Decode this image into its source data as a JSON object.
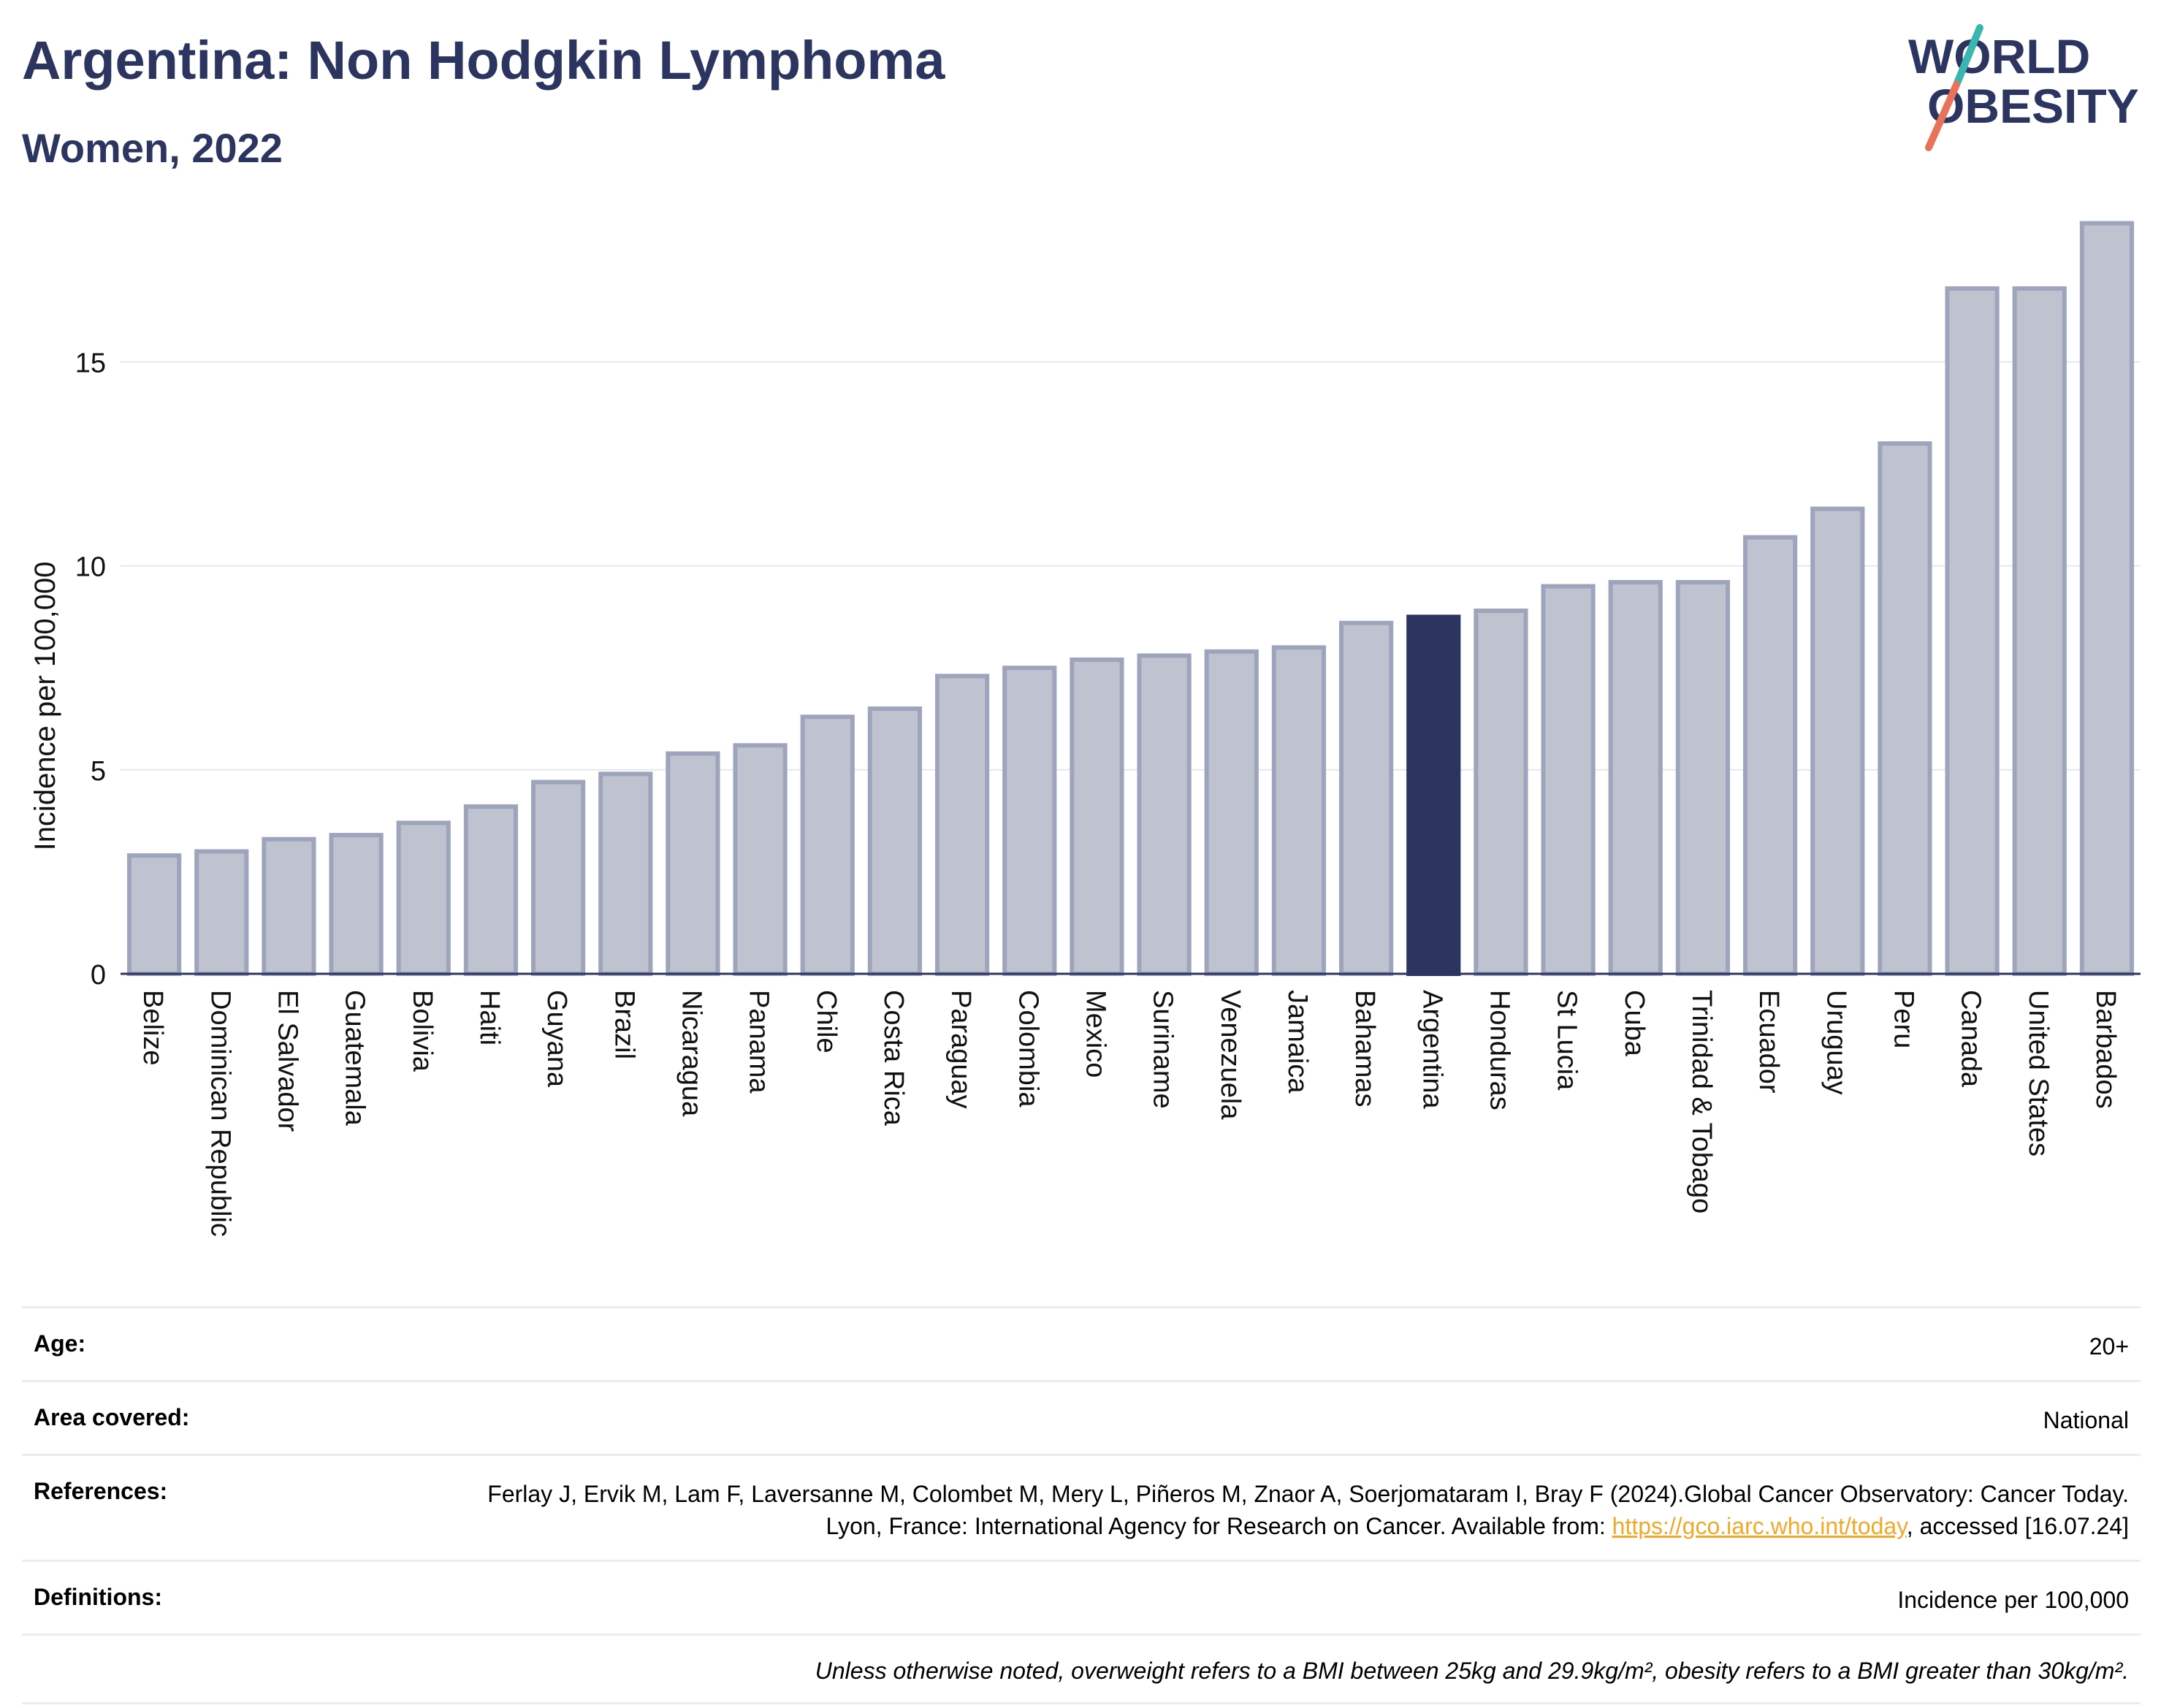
{
  "header": {
    "title": "Argentina: Non Hodgkin Lymphoma",
    "subtitle": "Women, 2022"
  },
  "logo": {
    "line1": "WORLD",
    "line2": "OBESITY",
    "icon": "world-obesity-logo"
  },
  "colors": {
    "highlight": "#2b3560",
    "bar_fill": "#bfc3d0",
    "bar_stroke": "#9ea4bb",
    "accent_teal": "#3bb5b0",
    "accent_coral": "#e8735a"
  },
  "chart_data": {
    "type": "bar",
    "title": "Argentina: Non Hodgkin Lymphoma",
    "subtitle": "Women, 2022",
    "ylabel": "Incidence per 100,000",
    "xlabel": "",
    "ylim": [
      0,
      18.5
    ],
    "yticks": [
      0,
      5,
      10,
      15
    ],
    "grid": true,
    "highlight": "Argentina",
    "categories": [
      "Belize",
      "Dominican Republic",
      "El Salvador",
      "Guatemala",
      "Bolivia",
      "Haiti",
      "Guyana",
      "Brazil",
      "Nicaragua",
      "Panama",
      "Chile",
      "Costa Rica",
      "Paraguay",
      "Colombia",
      "Mexico",
      "Suriname",
      "Venezuela",
      "Jamaica",
      "Bahamas",
      "Argentina",
      "Honduras",
      "St Lucia",
      "Cuba",
      "Trinidad & Tobago",
      "Ecuador",
      "Uruguay",
      "Peru",
      "Canada",
      "United States",
      "Barbados"
    ],
    "values": [
      2.9,
      3.0,
      3.3,
      3.4,
      3.7,
      4.1,
      4.7,
      4.9,
      5.4,
      5.6,
      6.3,
      6.5,
      7.3,
      7.5,
      7.7,
      7.8,
      7.9,
      8.0,
      8.6,
      8.75,
      8.9,
      9.5,
      9.6,
      9.6,
      10.7,
      11.4,
      13.0,
      16.8,
      16.8,
      18.4
    ]
  },
  "info": {
    "age_label": "Age:",
    "age_value": "20+",
    "area_label": "Area covered:",
    "area_value": "National",
    "references_label": "References:",
    "references_text1": "Ferlay J, Ervik M, Lam F, Laversanne M, Colombet M, Mery L, Piñeros M, Znaor A, Soerjomataram I, Bray F (2024).Global Cancer Observatory: Cancer Today. Lyon, France: International Agency for Research on Cancer. Available from: ",
    "references_link": "https://gco.iarc.who.int/today",
    "references_text2": ", accessed [16.07.24]",
    "definitions_label": "Definitions:",
    "definitions_value": "Incidence per 100,000",
    "note": "Unless otherwise noted, overweight refers to a BMI between 25kg and 29.9kg/m², obesity refers to a BMI greater than 30kg/m²."
  }
}
